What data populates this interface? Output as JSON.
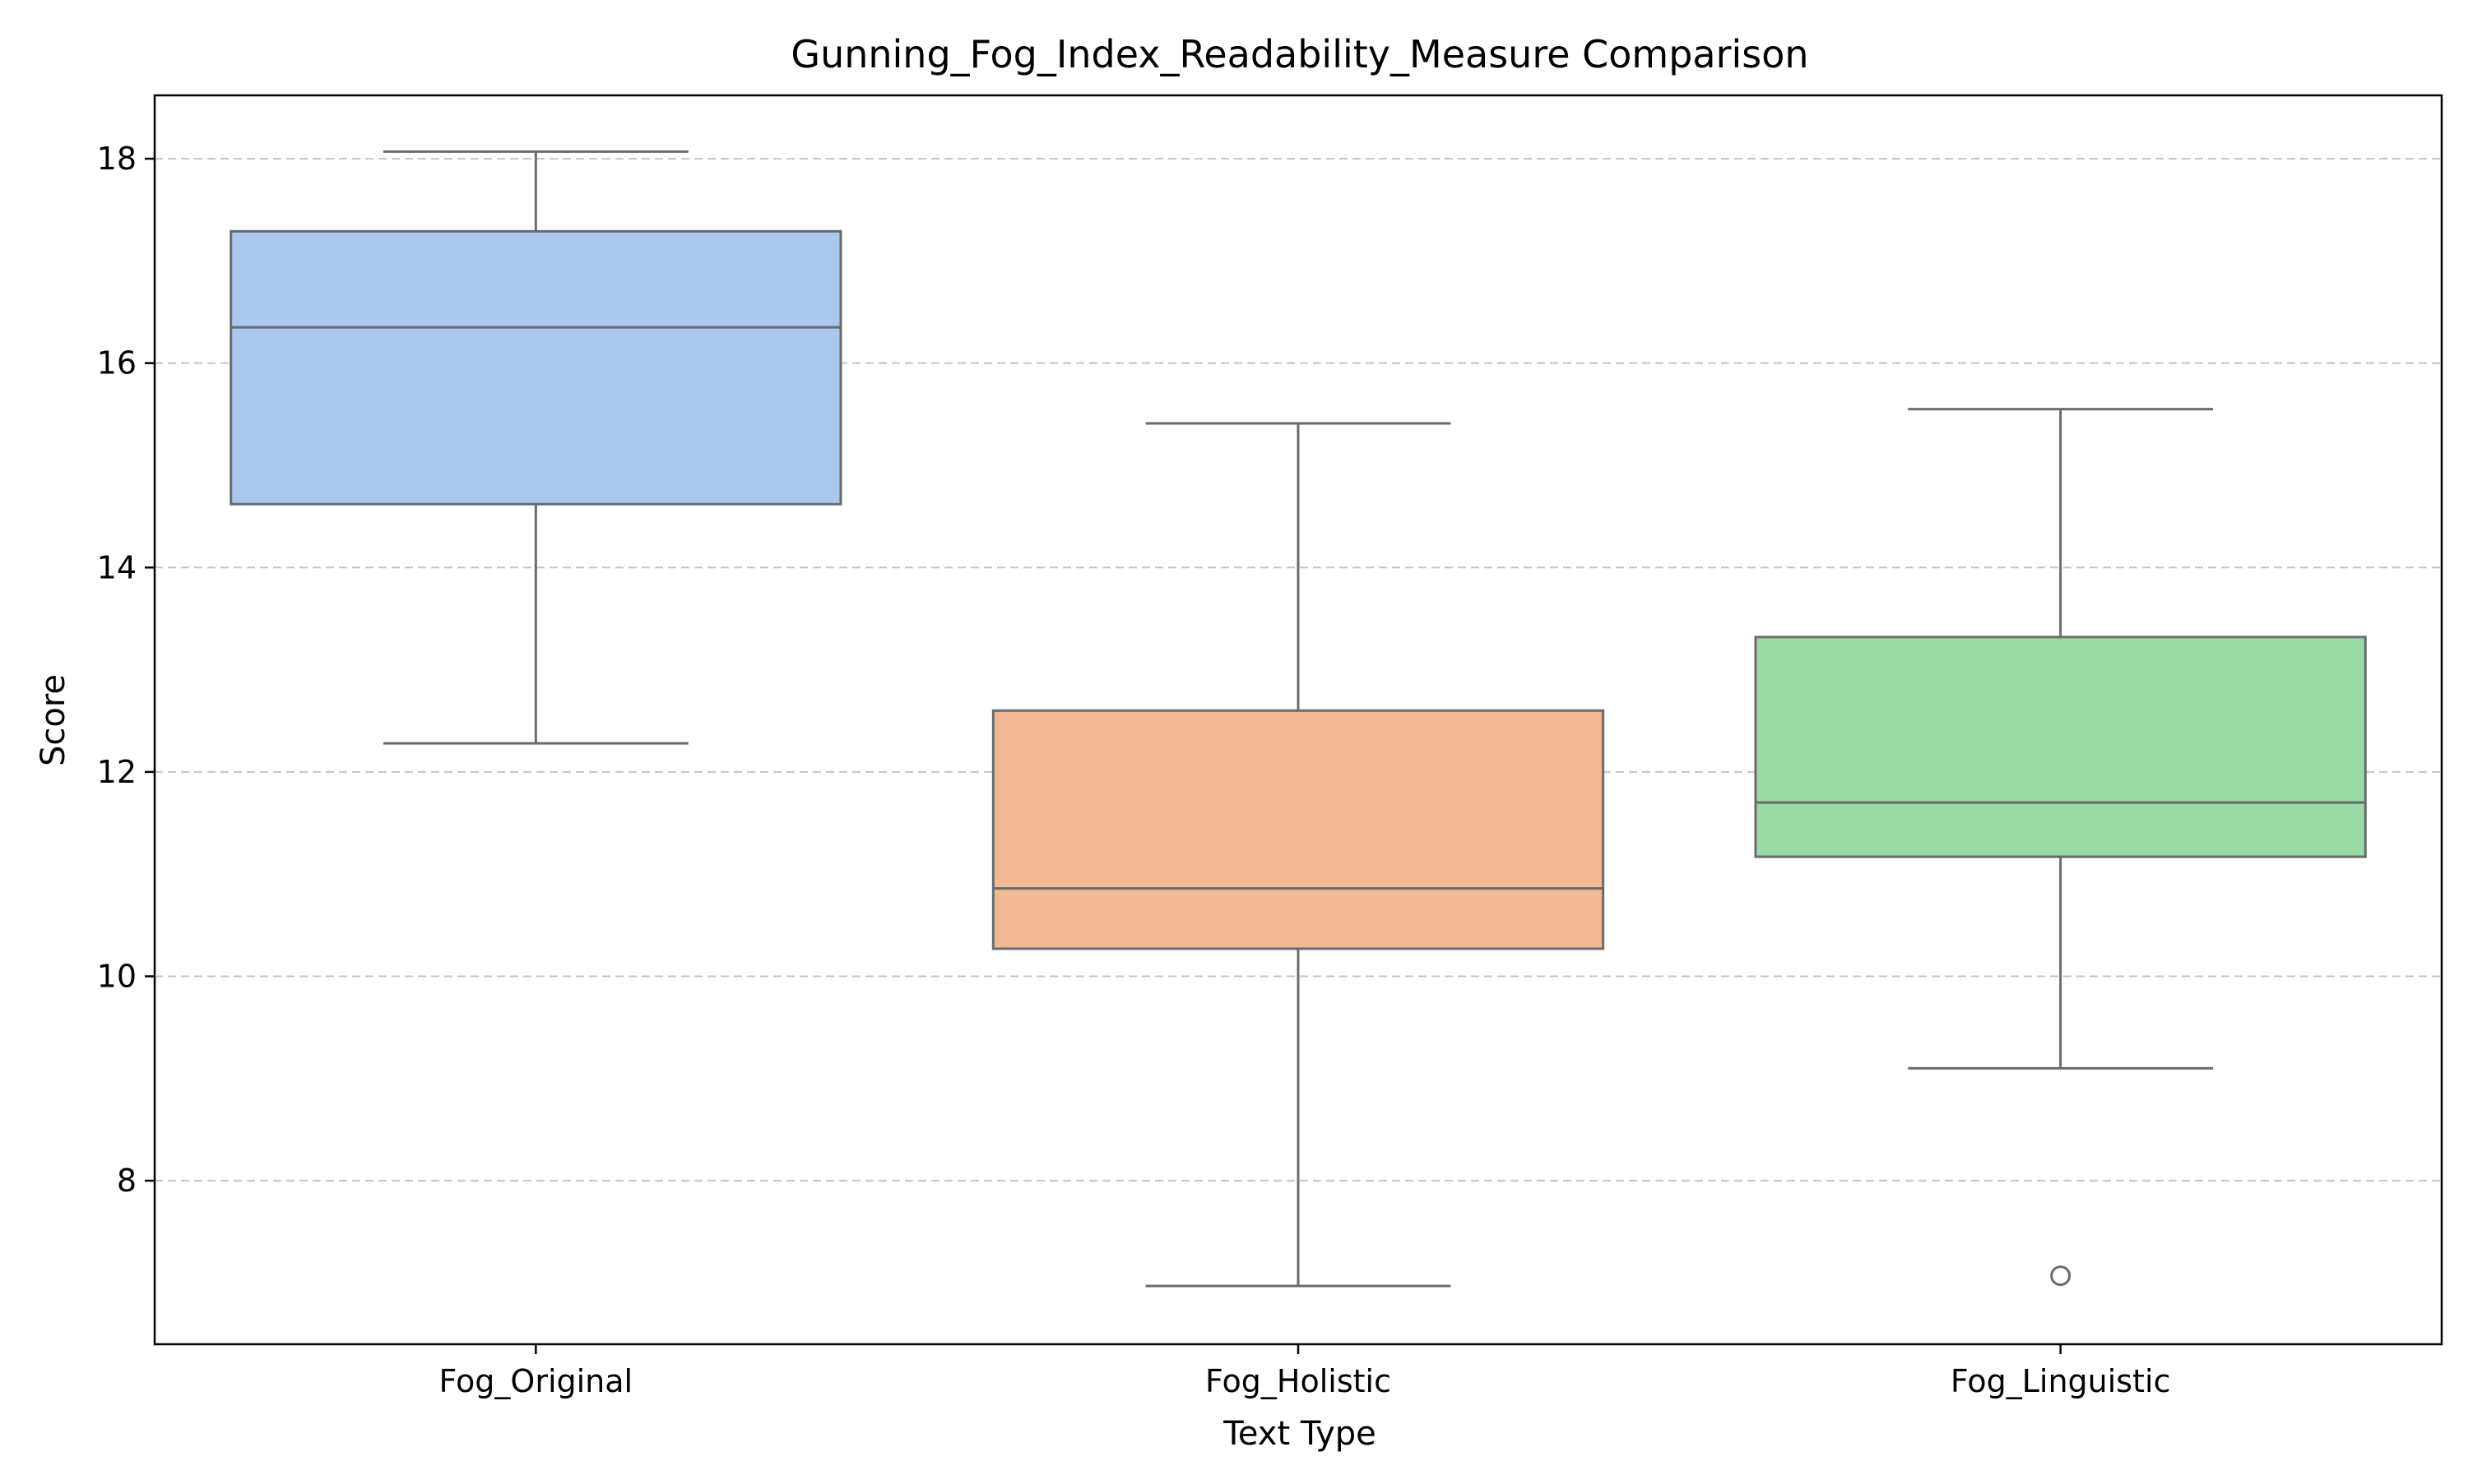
{
  "chart_data": {
    "type": "box",
    "title": "Gunning_Fog_Index_Readability_Measure Comparison",
    "xlabel": "Text Type",
    "ylabel": "Score",
    "ylim": [
      6.4,
      18.62
    ],
    "yticks": [
      8,
      10,
      12,
      14,
      16,
      18
    ],
    "grid": {
      "y": true,
      "style": "dashed"
    },
    "categories": [
      "Fog_Original",
      "Fog_Holistic",
      "Fog_Linguistic"
    ],
    "boxes": [
      {
        "category": "Fog_Original",
        "whisker_low": 12.28,
        "q1": 14.62,
        "median": 16.35,
        "q3": 17.29,
        "whisker_high": 18.07,
        "outliers": [],
        "color": "#a9c8ec"
      },
      {
        "category": "Fog_Holistic",
        "whisker_low": 6.97,
        "q1": 10.27,
        "median": 10.86,
        "q3": 12.6,
        "whisker_high": 15.41,
        "outliers": [],
        "color": "#f0b893"
      },
      {
        "category": "Fog_Linguistic",
        "whisker_low": 9.1,
        "q1": 11.17,
        "median": 11.7,
        "q3": 13.32,
        "whisker_high": 15.55,
        "outliers": [
          7.07
        ],
        "color": "#98d9a6"
      }
    ],
    "line_color": "#6b6b6b",
    "grid_color": "#c4c4c4"
  }
}
